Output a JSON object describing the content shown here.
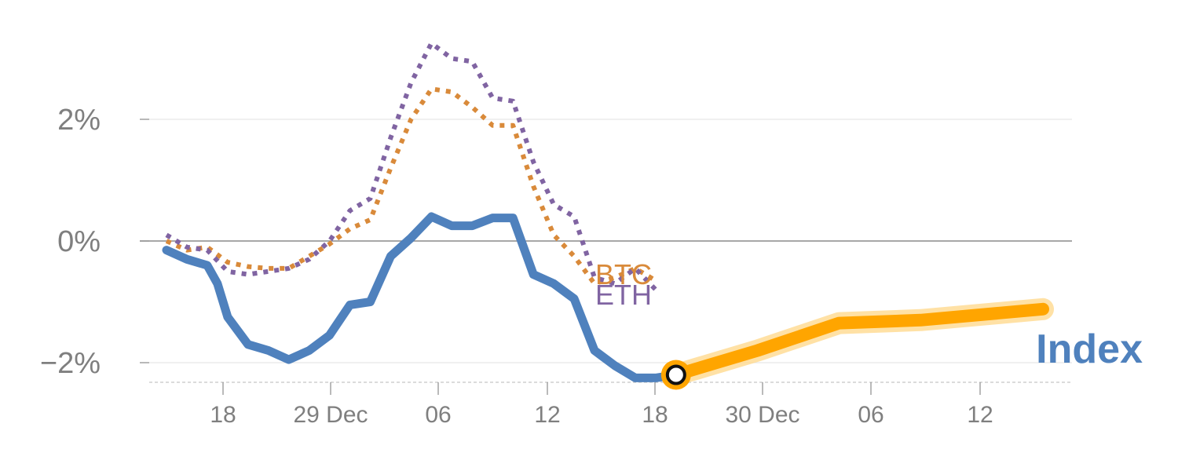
{
  "chart_data": {
    "type": "line",
    "title": "",
    "xlabel": "",
    "ylabel": "",
    "x_tick_labels": [
      "18",
      "29 Dec",
      "06",
      "12",
      "18",
      "30 Dec",
      "06",
      "12"
    ],
    "x_range": [
      0,
      43
    ],
    "ylim": [
      -2.3,
      3.3
    ],
    "y_ticks": [
      {
        "value": 2,
        "label": "2%"
      },
      {
        "value": 0,
        "label": "0%"
      },
      {
        "value": -2,
        "label": "−2%"
      }
    ],
    "zero_line": true,
    "grid": true,
    "legend": "inline labels",
    "series": [
      {
        "name": "BTC",
        "color": "#d98a3a",
        "style": "dotted",
        "x": [
          0,
          1,
          2,
          3,
          4,
          5,
          6,
          7,
          8,
          9,
          10,
          11,
          12,
          13,
          14,
          15,
          16,
          17,
          18,
          19,
          20
        ],
        "y": [
          0.0,
          -0.15,
          -0.1,
          -0.35,
          -0.42,
          -0.45,
          -0.45,
          -0.25,
          -0.05,
          0.2,
          0.35,
          1.2,
          2.0,
          2.5,
          2.45,
          2.2,
          1.9,
          1.9,
          0.9,
          0.1,
          -0.25
        ]
      },
      {
        "name": "ETH",
        "color": "#8064a2",
        "style": "dotted",
        "x": [
          0,
          1,
          2,
          3,
          4,
          5,
          6,
          7,
          8,
          9,
          10,
          11,
          12,
          13,
          14,
          15,
          16,
          17,
          18,
          19,
          20
        ],
        "y": [
          0.1,
          -0.1,
          -0.15,
          -0.5,
          -0.55,
          -0.5,
          -0.45,
          -0.3,
          0.0,
          0.5,
          0.7,
          1.7,
          2.6,
          3.25,
          3.0,
          2.95,
          2.35,
          2.3,
          1.3,
          0.6,
          0.4
        ]
      },
      {
        "name": "Index",
        "color": "#4f81bd",
        "style": "solid",
        "x": [
          0,
          1,
          2,
          2.5,
          3,
          4,
          5,
          6,
          7,
          8,
          9,
          10,
          11,
          12,
          13,
          14,
          15,
          16,
          17,
          18,
          19,
          20,
          21,
          22,
          23,
          24,
          25
        ],
        "y": [
          -0.15,
          -0.3,
          -0.4,
          -0.7,
          -1.25,
          -1.7,
          -1.8,
          -1.95,
          -1.8,
          -1.55,
          -1.05,
          -1.0,
          -0.25,
          0.05,
          0.4,
          0.25,
          0.25,
          0.38,
          0.38,
          -0.55,
          -0.7,
          -0.95,
          -1.8,
          -2.05,
          -2.25,
          -2.25,
          -2.2
        ]
      },
      {
        "name": "",
        "color": "#ffa500",
        "style": "forecast",
        "x": [
          25,
          29,
          33,
          37,
          43
        ],
        "y": [
          -2.2,
          -1.8,
          -1.35,
          -1.3,
          -1.12
        ]
      }
    ],
    "extra_tail": {
      "BTC": {
        "x": [
          21,
          22,
          23,
          24
        ],
        "y": [
          -0.7,
          -0.6,
          -0.45,
          -0.65
        ]
      },
      "ETH": {
        "x": [
          21,
          22,
          23,
          24
        ],
        "y": [
          -0.6,
          -0.7,
          -0.45,
          -0.8
        ]
      }
    },
    "marker": {
      "x": 25,
      "y": -2.2
    }
  }
}
